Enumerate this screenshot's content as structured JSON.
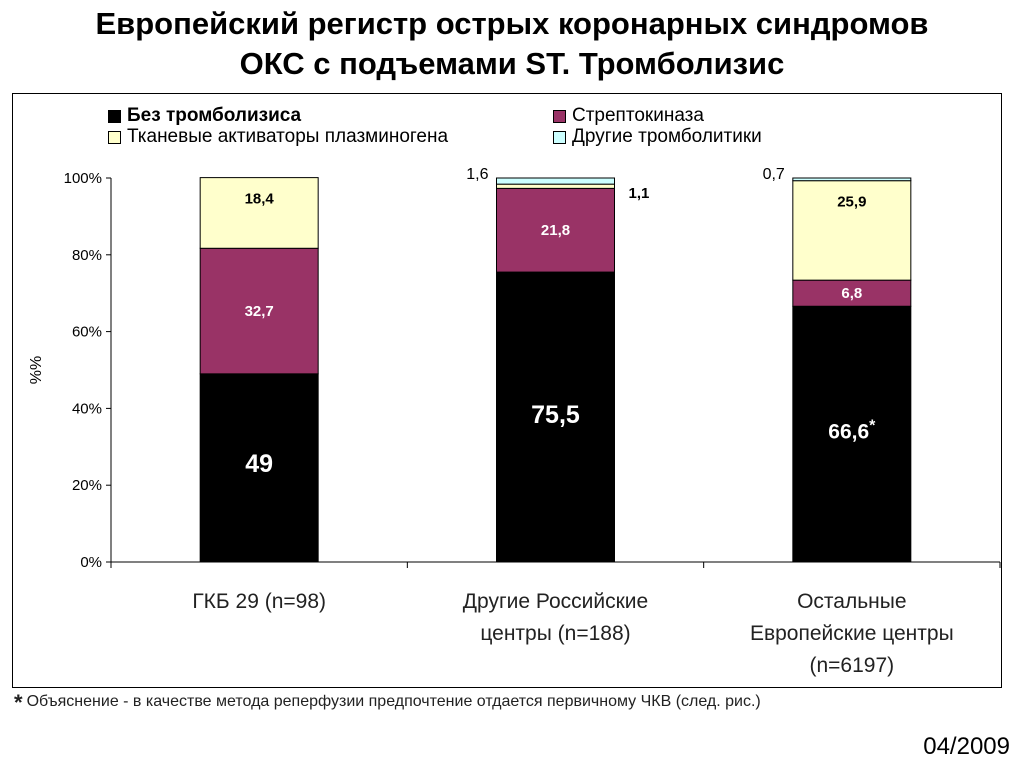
{
  "title": {
    "line1": "Европейский регистр острых коронарных синдромов",
    "line2": "ОКС с подъемами ST. Тромболизис"
  },
  "footnote": {
    "star": "*",
    "text": "Объяснение - в качестве метода реперфузии предпочтение отдается первичному ЧКВ (след. рис.)"
  },
  "date": "04/2009",
  "colors": {
    "Без тромболизиса": "#000000",
    "Стрептокиназа": "#993366",
    "Тканевые активаторы плазминогена": "#FFFFCC",
    "Другие тромболитики": "#CCFFFF"
  },
  "chart_data": {
    "type": "bar",
    "stacked": true,
    "ylabel": "%%",
    "ylim": [
      0,
      100
    ],
    "yticks": [
      "0%",
      "20%",
      "40%",
      "60%",
      "80%",
      "100%"
    ],
    "grid": false,
    "legend_position": "top",
    "legend": [
      "Без тромболизиса",
      "Стрептокиназа",
      "Тканевые активаторы плазминогена",
      "Другие тромболитики"
    ],
    "categories": [
      [
        "ГКБ 29 (n=98)"
      ],
      [
        "Другие Российские",
        "центры (n=188)"
      ],
      [
        "Остальные",
        "Европейские центры",
        "(n=6197)"
      ]
    ],
    "series": [
      {
        "name": "Без тромболизиса",
        "values": [
          49,
          75.5,
          66.6
        ]
      },
      {
        "name": "Стрептокиназа",
        "values": [
          32.7,
          21.8,
          6.8
        ]
      },
      {
        "name": "Тканевые активаторы плазминогена",
        "values": [
          18.4,
          1.1,
          25.9
        ]
      },
      {
        "name": "Другие тромболитики",
        "values": [
          0,
          1.6,
          0.7
        ]
      }
    ],
    "data_labels": [
      [
        "49",
        "32,7",
        "18,4",
        ""
      ],
      [
        "75,5",
        "21,8",
        "1,1",
        "1,6"
      ],
      [
        "66,6",
        "6,8",
        "25,9",
        "0,7"
      ]
    ],
    "annotations": [
      {
        "category_index": 2,
        "series_index": 0,
        "text": "*"
      }
    ]
  }
}
